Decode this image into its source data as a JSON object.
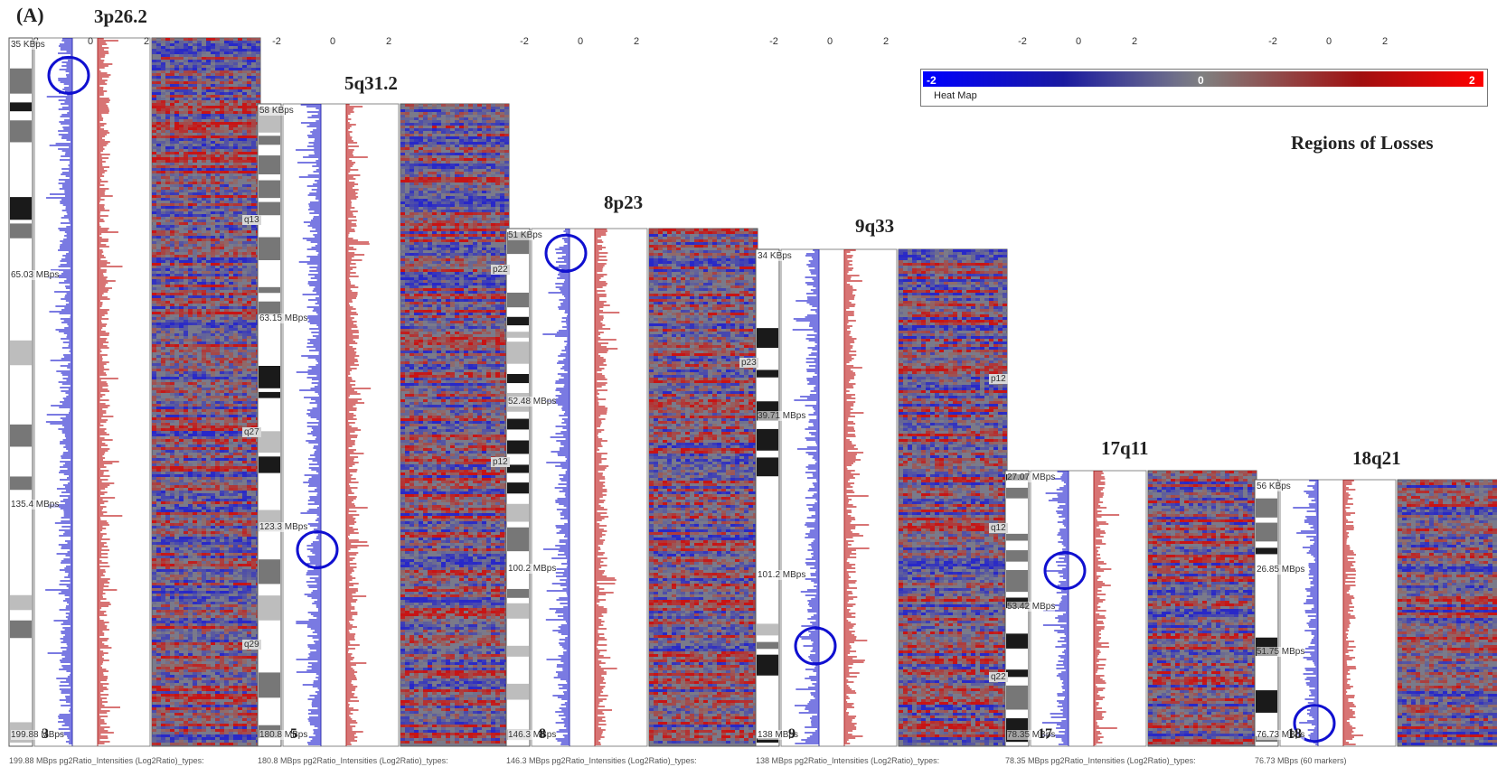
{
  "panel_label": "(A)",
  "legend": {
    "min_label": "-2",
    "mid_label": "0",
    "max_label": "2",
    "title": "Heat Map",
    "colors": {
      "low": "#0000ff",
      "mid": "#808080",
      "high": "#ff0000"
    }
  },
  "caption_right": "Regions of Losses",
  "chart_data": {
    "type": "heatmap",
    "value_range": [
      -2,
      2
    ],
    "tracks": [
      {
        "chromosome": "3",
        "region": "3p26.2",
        "axis_ticks": [
          "-2",
          "0",
          "2"
        ],
        "mb_labels": [
          "35 KBps",
          "65.03 MBps",
          "135.4 MBps",
          "199.88 MBps"
        ],
        "bands": [
          "q13",
          "q27",
          "q29"
        ],
        "footer": "199.88 MBps  pg2Ratio_Intensities (Log2Ratio)_types:"
      },
      {
        "chromosome": "5",
        "region": "5q31.2",
        "axis_ticks": [
          "-2",
          "0",
          "2"
        ],
        "mb_labels": [
          "58 KBps",
          "63.15 MBps",
          "123.3 MBps",
          "180.8 MBps"
        ],
        "bands": [
          "p22",
          "p12"
        ],
        "footer": "180.8 MBps  pg2Ratio_Intensities (Log2Ratio)_types:"
      },
      {
        "chromosome": "8",
        "region": "8p23",
        "axis_ticks": [
          "-2",
          "0",
          "2"
        ],
        "mb_labels": [
          "51 KBps",
          "52.48 MBps",
          "100.2 MBps",
          "146.3 MBps"
        ],
        "bands": [
          "p23"
        ],
        "footer": "146.3 MBps  pg2Ratio_Intensities (Log2Ratio)_types:"
      },
      {
        "chromosome": "9",
        "region": "9q33",
        "axis_ticks": [
          "-2",
          "0",
          "2"
        ],
        "mb_labels": [
          "34 KBps",
          "39.71 MBps",
          "101.2 MBps",
          "138 MBps"
        ],
        "bands": [
          "p12",
          "q12",
          "q22"
        ],
        "footer": "138 MBps  pg2Ratio_Intensities (Log2Ratio)_types:"
      },
      {
        "chromosome": "17",
        "region": "17q11",
        "axis_ticks": [
          "-2",
          "0",
          "2"
        ],
        "mb_labels": [
          "27.07 MBps",
          "53.42 MBps",
          "78.35 MBps"
        ],
        "bands": [],
        "footer": "78.35 MBps  pg2Ratio_Intensities (Log2Ratio)_types:"
      },
      {
        "chromosome": "18",
        "region": "18q21",
        "axis_ticks": [
          "-2",
          "0",
          "2"
        ],
        "mb_labels": [
          "56 KBps",
          "26.85 MBps",
          "51.75 MBps",
          "76.73 MBps"
        ],
        "bands": [],
        "footer": "76.73 MBps  (60 markers)"
      }
    ]
  }
}
